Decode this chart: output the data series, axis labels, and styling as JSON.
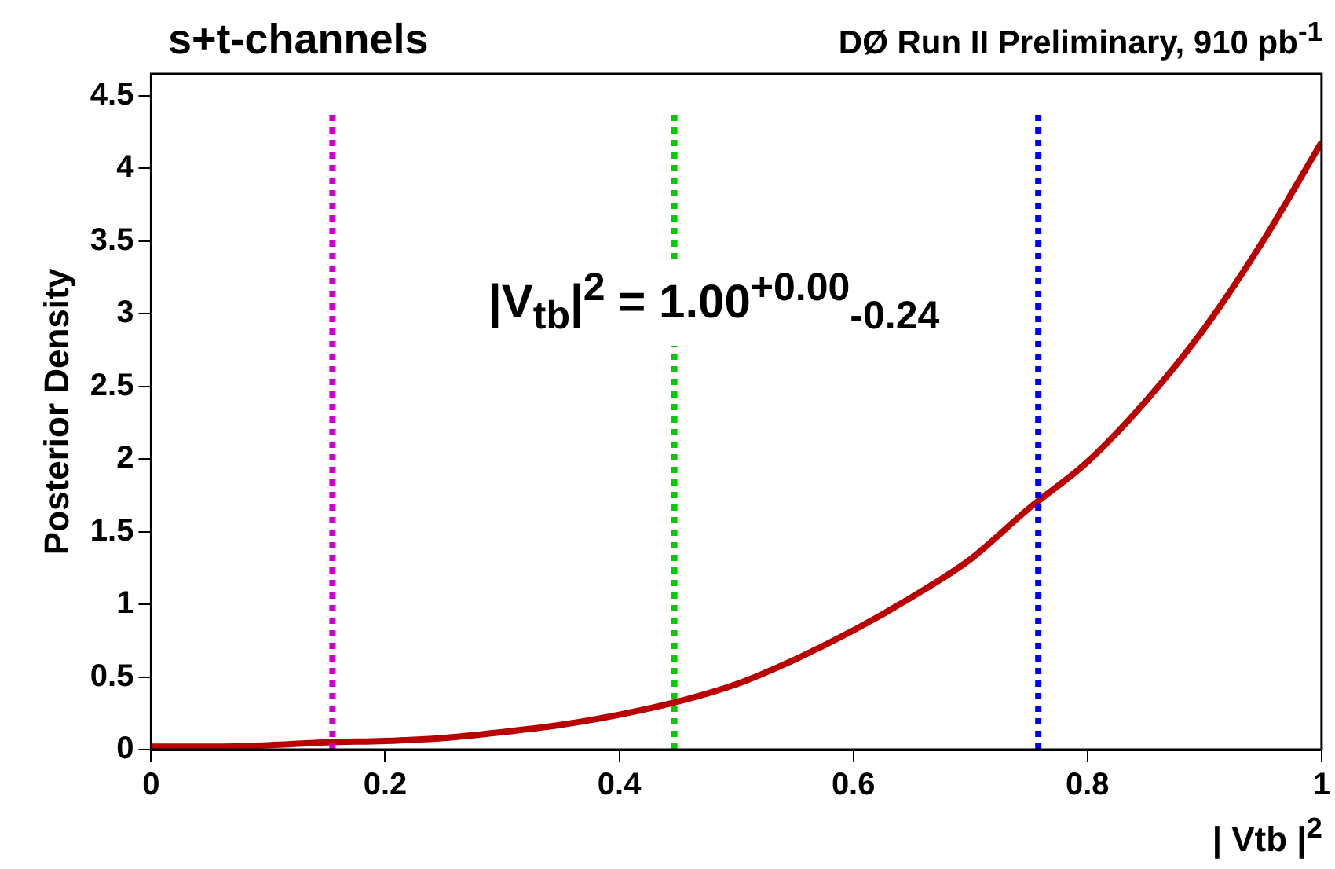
{
  "chart_data": {
    "type": "line",
    "title": "s+t-channels",
    "subtitle": "DØ Run II Preliminary, 910 pb$^{-1}$",
    "xlabel": "| Vtb |$^{2}$",
    "ylabel": "Posterior Density",
    "x": [
      0,
      0.05,
      0.1,
      0.15,
      0.2,
      0.25,
      0.3,
      0.35,
      0.4,
      0.45,
      0.5,
      0.55,
      0.6,
      0.65,
      0.7,
      0.75,
      0.8,
      0.85,
      0.9,
      0.95,
      1
    ],
    "series": [
      {
        "color": "#bb0000",
        "values": [
          0.02,
          0.02,
          0.03,
          0.05,
          0.06,
          0.08,
          0.12,
          0.17,
          0.24,
          0.33,
          0.45,
          0.62,
          0.82,
          1.05,
          1.31,
          1.66,
          1.98,
          2.4,
          2.9,
          3.5,
          4.18
        ]
      }
    ],
    "xlim": [
      0,
      1
    ],
    "ylim": [
      0,
      4.65
    ],
    "xticks": [
      0,
      0.2,
      0.4,
      0.6,
      0.8,
      1
    ],
    "yticks": [
      0,
      0.5,
      1,
      1.5,
      2,
      2.5,
      3,
      3.5,
      4,
      4.5
    ],
    "ref_lines": [
      {
        "axis": "x",
        "value": 0.155,
        "color": "#cc00cc",
        "line_style": "dotted"
      },
      {
        "axis": "x",
        "value": 0.447,
        "color": "#00cc00",
        "line_style": "dotted"
      },
      {
        "axis": "x",
        "value": 0.758,
        "color": "#0000ff",
        "line_style": "dotted"
      }
    ],
    "annotations": [
      "|V$_{tb}$|$^{2}$ = 1.00$^{+0.00}$$_{-0.24}$"
    ],
    "marker": "none",
    "line_style": "solid",
    "grid": false,
    "legend": false
  }
}
